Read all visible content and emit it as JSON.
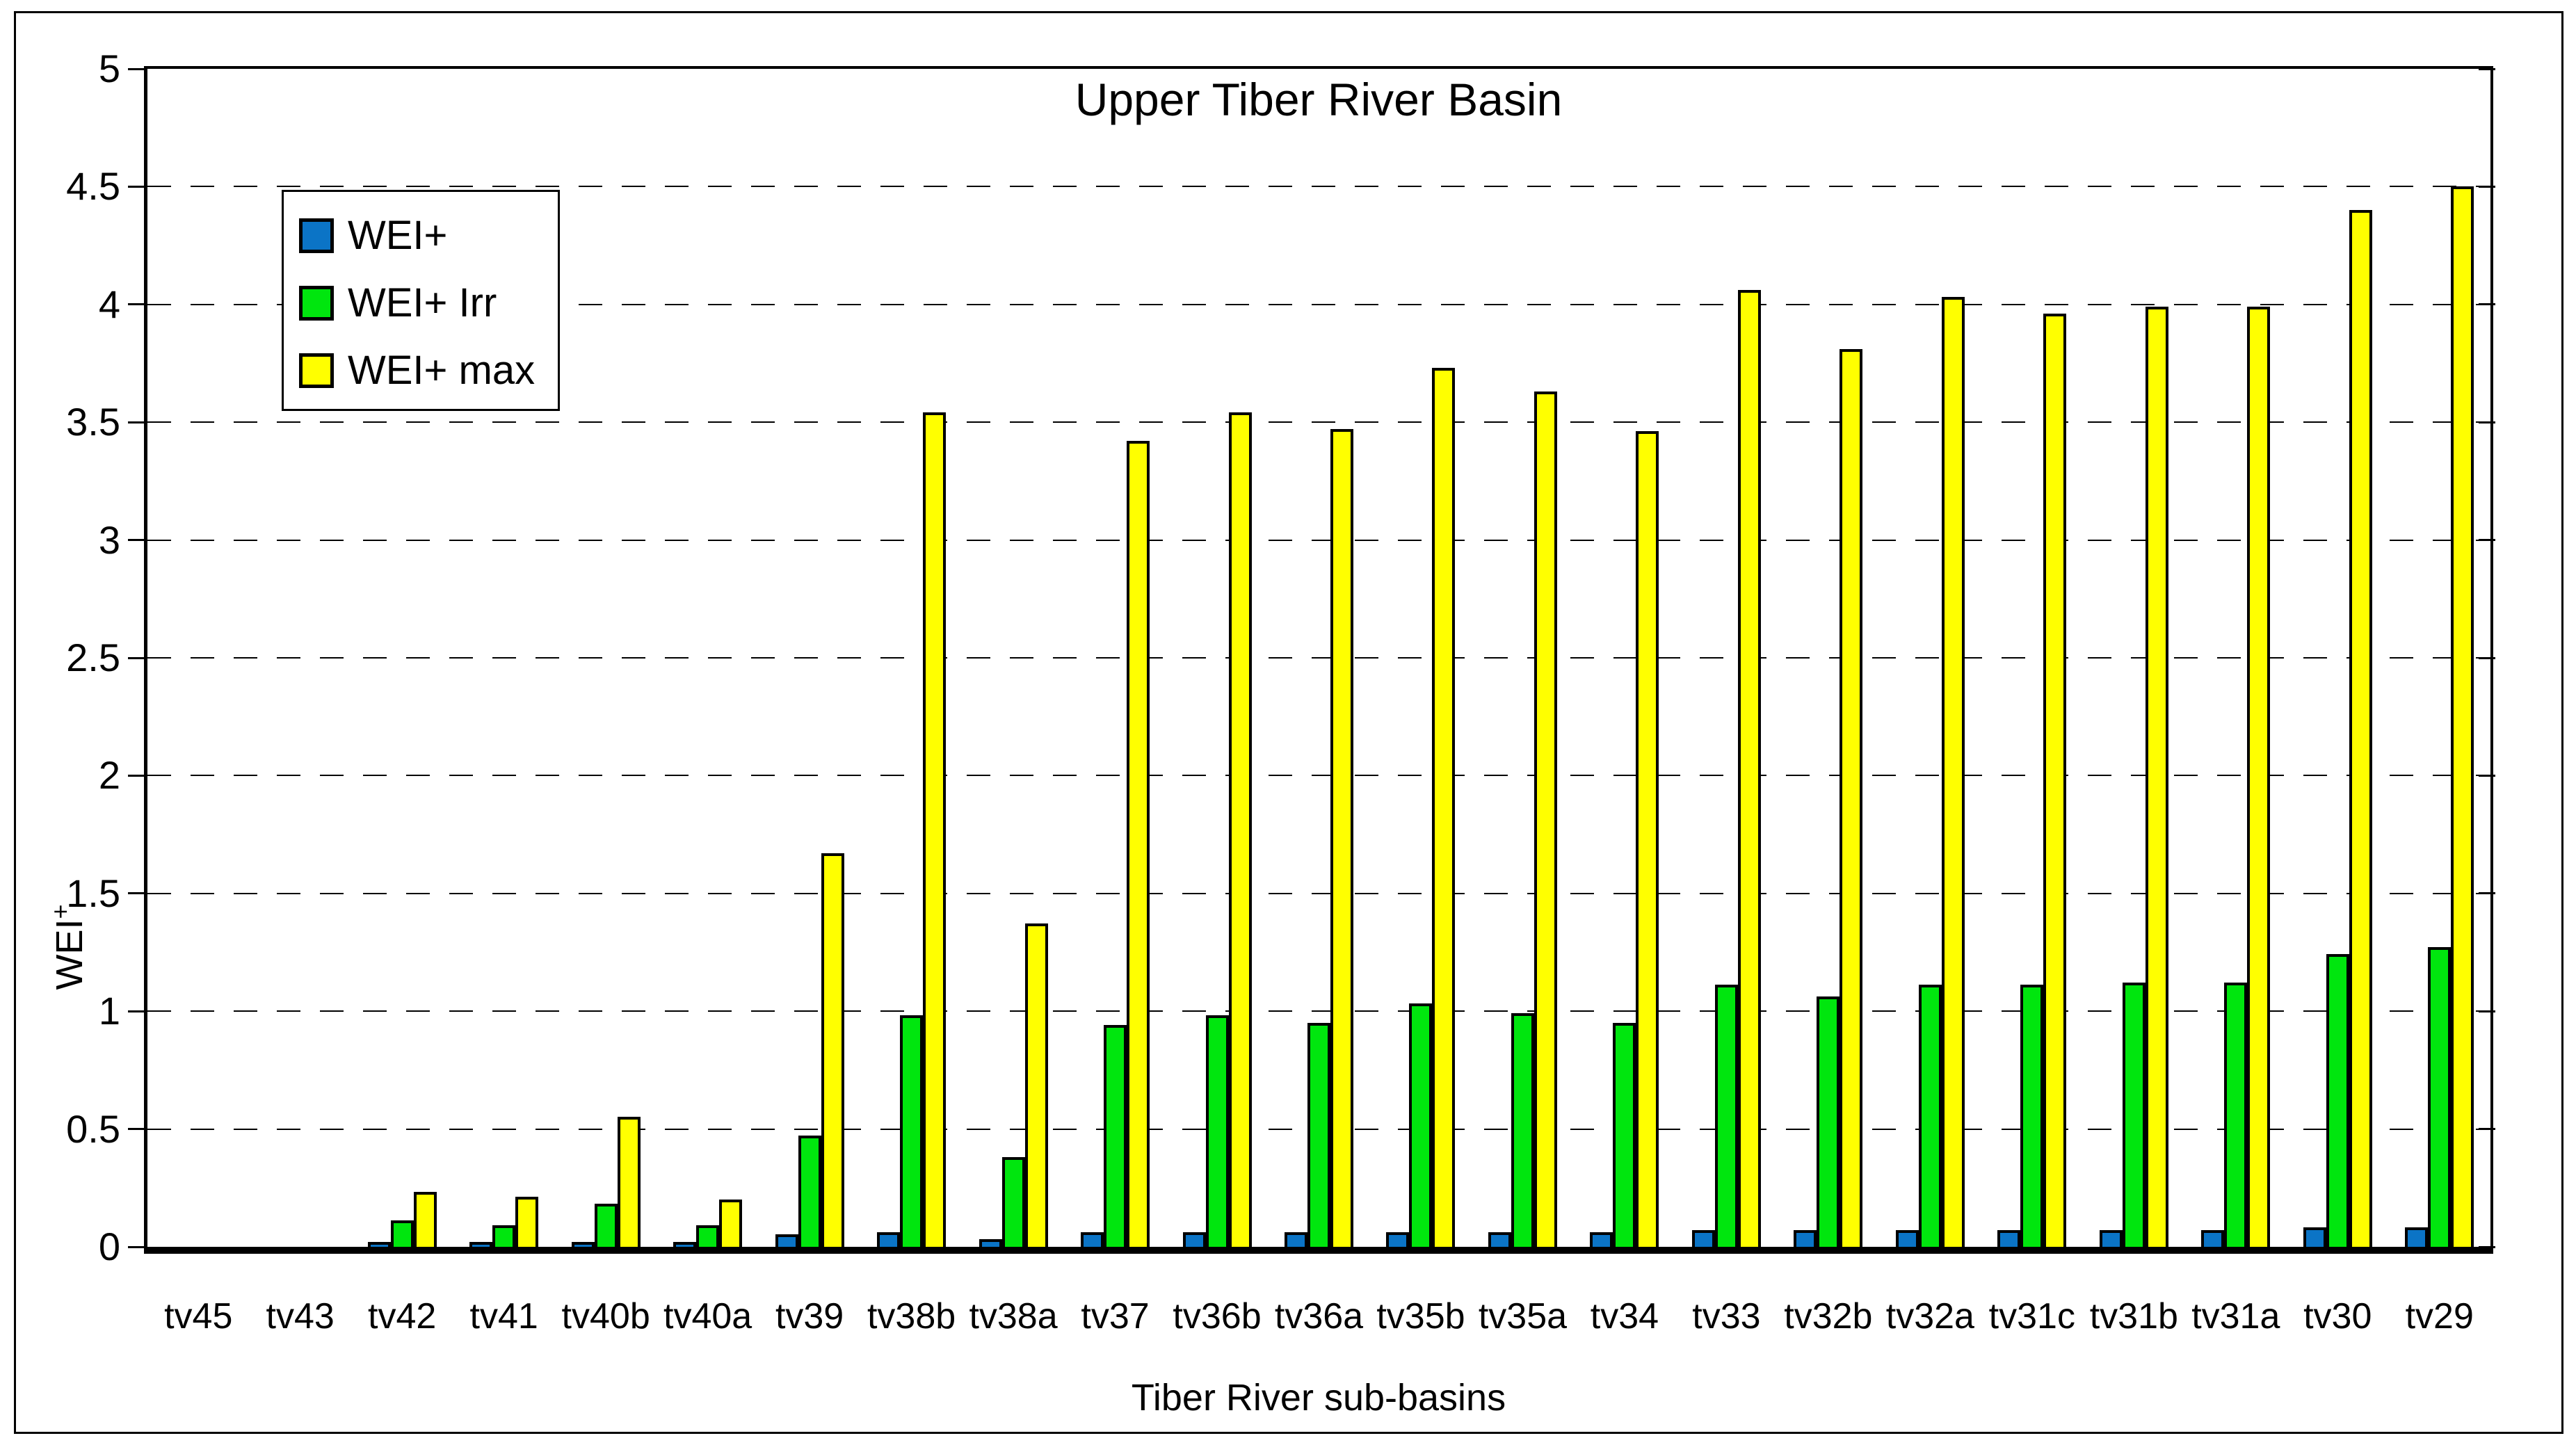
{
  "chart_data": {
    "type": "bar",
    "title": "Upper Tiber River Basin",
    "xlabel": "Tiber River sub-basins",
    "ylabel": "WEI",
    "ylabel_sup": "+",
    "ylim": [
      0,
      5
    ],
    "ytick_step": 0.5,
    "ytick_labels": [
      "0",
      "0.5",
      "1",
      "1.5",
      "2",
      "2.5",
      "3",
      "3.5",
      "4",
      "4.5",
      "5"
    ],
    "grid": "horizontal-dashed",
    "legend_position": "top-left",
    "categories": [
      "tv45",
      "tv43",
      "tv42",
      "tv41",
      "tv40b",
      "tv40a",
      "tv39",
      "tv38b",
      "tv38a",
      "tv37",
      "tv36b",
      "tv36a",
      "tv35b",
      "tv35a",
      "tv34",
      "tv33",
      "tv32b",
      "tv32a",
      "tv31c",
      "tv31b",
      "tv31a",
      "tv30",
      "tv29"
    ],
    "series": [
      {
        "name": "WEI+",
        "color": "#0b74c6",
        "values": [
          0,
          0,
          0.01,
          0.01,
          0.01,
          0.01,
          0.04,
          0.05,
          0.02,
          0.05,
          0.05,
          0.05,
          0.05,
          0.05,
          0.05,
          0.06,
          0.06,
          0.06,
          0.06,
          0.06,
          0.06,
          0.07,
          0.07
        ]
      },
      {
        "name": "WEI+ Irr",
        "color": "#00e60e",
        "values": [
          0,
          0,
          0.1,
          0.08,
          0.17,
          0.08,
          0.46,
          0.97,
          0.37,
          0.93,
          0.97,
          0.94,
          1.02,
          0.98,
          0.94,
          1.1,
          1.05,
          1.1,
          1.1,
          1.11,
          1.11,
          1.23,
          1.26
        ]
      },
      {
        "name": "WEI+ max",
        "color": "#ffff00",
        "values": [
          0,
          0,
          0.22,
          0.2,
          0.54,
          0.19,
          1.66,
          3.53,
          1.36,
          3.41,
          3.53,
          3.46,
          3.72,
          3.62,
          3.45,
          4.05,
          3.8,
          4.02,
          3.95,
          3.98,
          3.98,
          4.39,
          4.49
        ]
      }
    ]
  }
}
